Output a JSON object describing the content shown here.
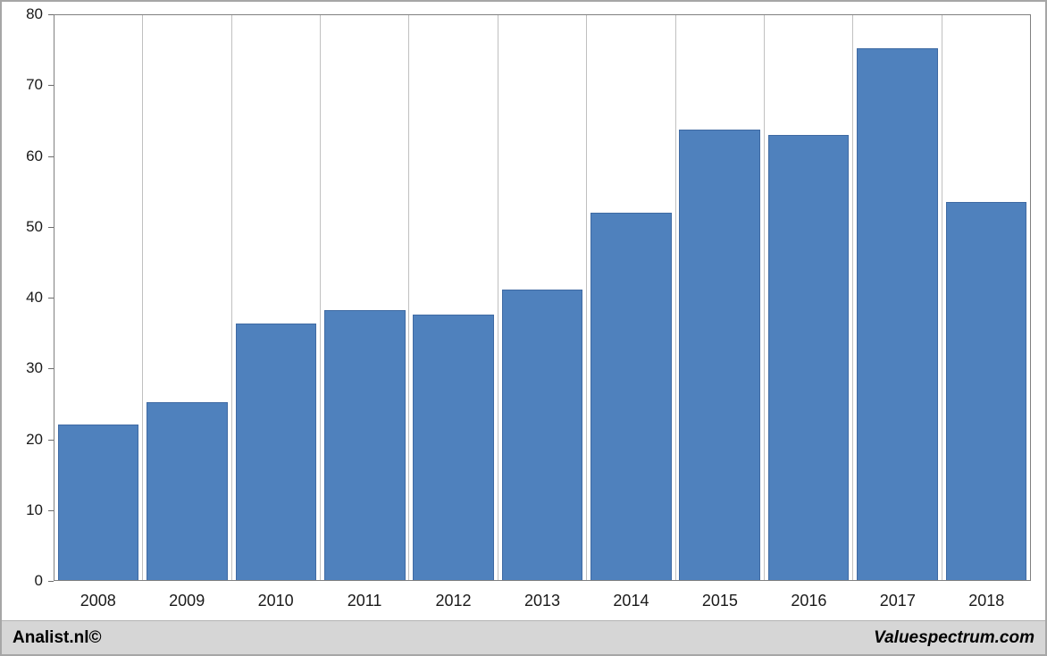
{
  "chart_data": {
    "type": "bar",
    "categories": [
      "2008",
      "2009",
      "2010",
      "2011",
      "2012",
      "2013",
      "2014",
      "2015",
      "2016",
      "2017",
      "2018"
    ],
    "values": [
      22.0,
      25.2,
      36.3,
      38.2,
      37.6,
      41.2,
      52.0,
      63.8,
      63.1,
      75.3,
      53.5
    ],
    "title": "",
    "xlabel": "",
    "ylabel": "",
    "ylim": [
      0,
      80
    ],
    "yticks": [
      0,
      10,
      20,
      30,
      40,
      50,
      60,
      70,
      80
    ],
    "grid": "vertical-only",
    "legend": "none"
  },
  "colors": {
    "bar": "#4f81bd",
    "bar_border": "#3f6aa3",
    "grid": "#c0c0c0",
    "axis": "#808080",
    "footer_bg": "#d6d6d6",
    "frame_border": "#a6a6a6"
  },
  "footer": {
    "left": "Analist.nl©",
    "right": "Valuespectrum.com"
  }
}
